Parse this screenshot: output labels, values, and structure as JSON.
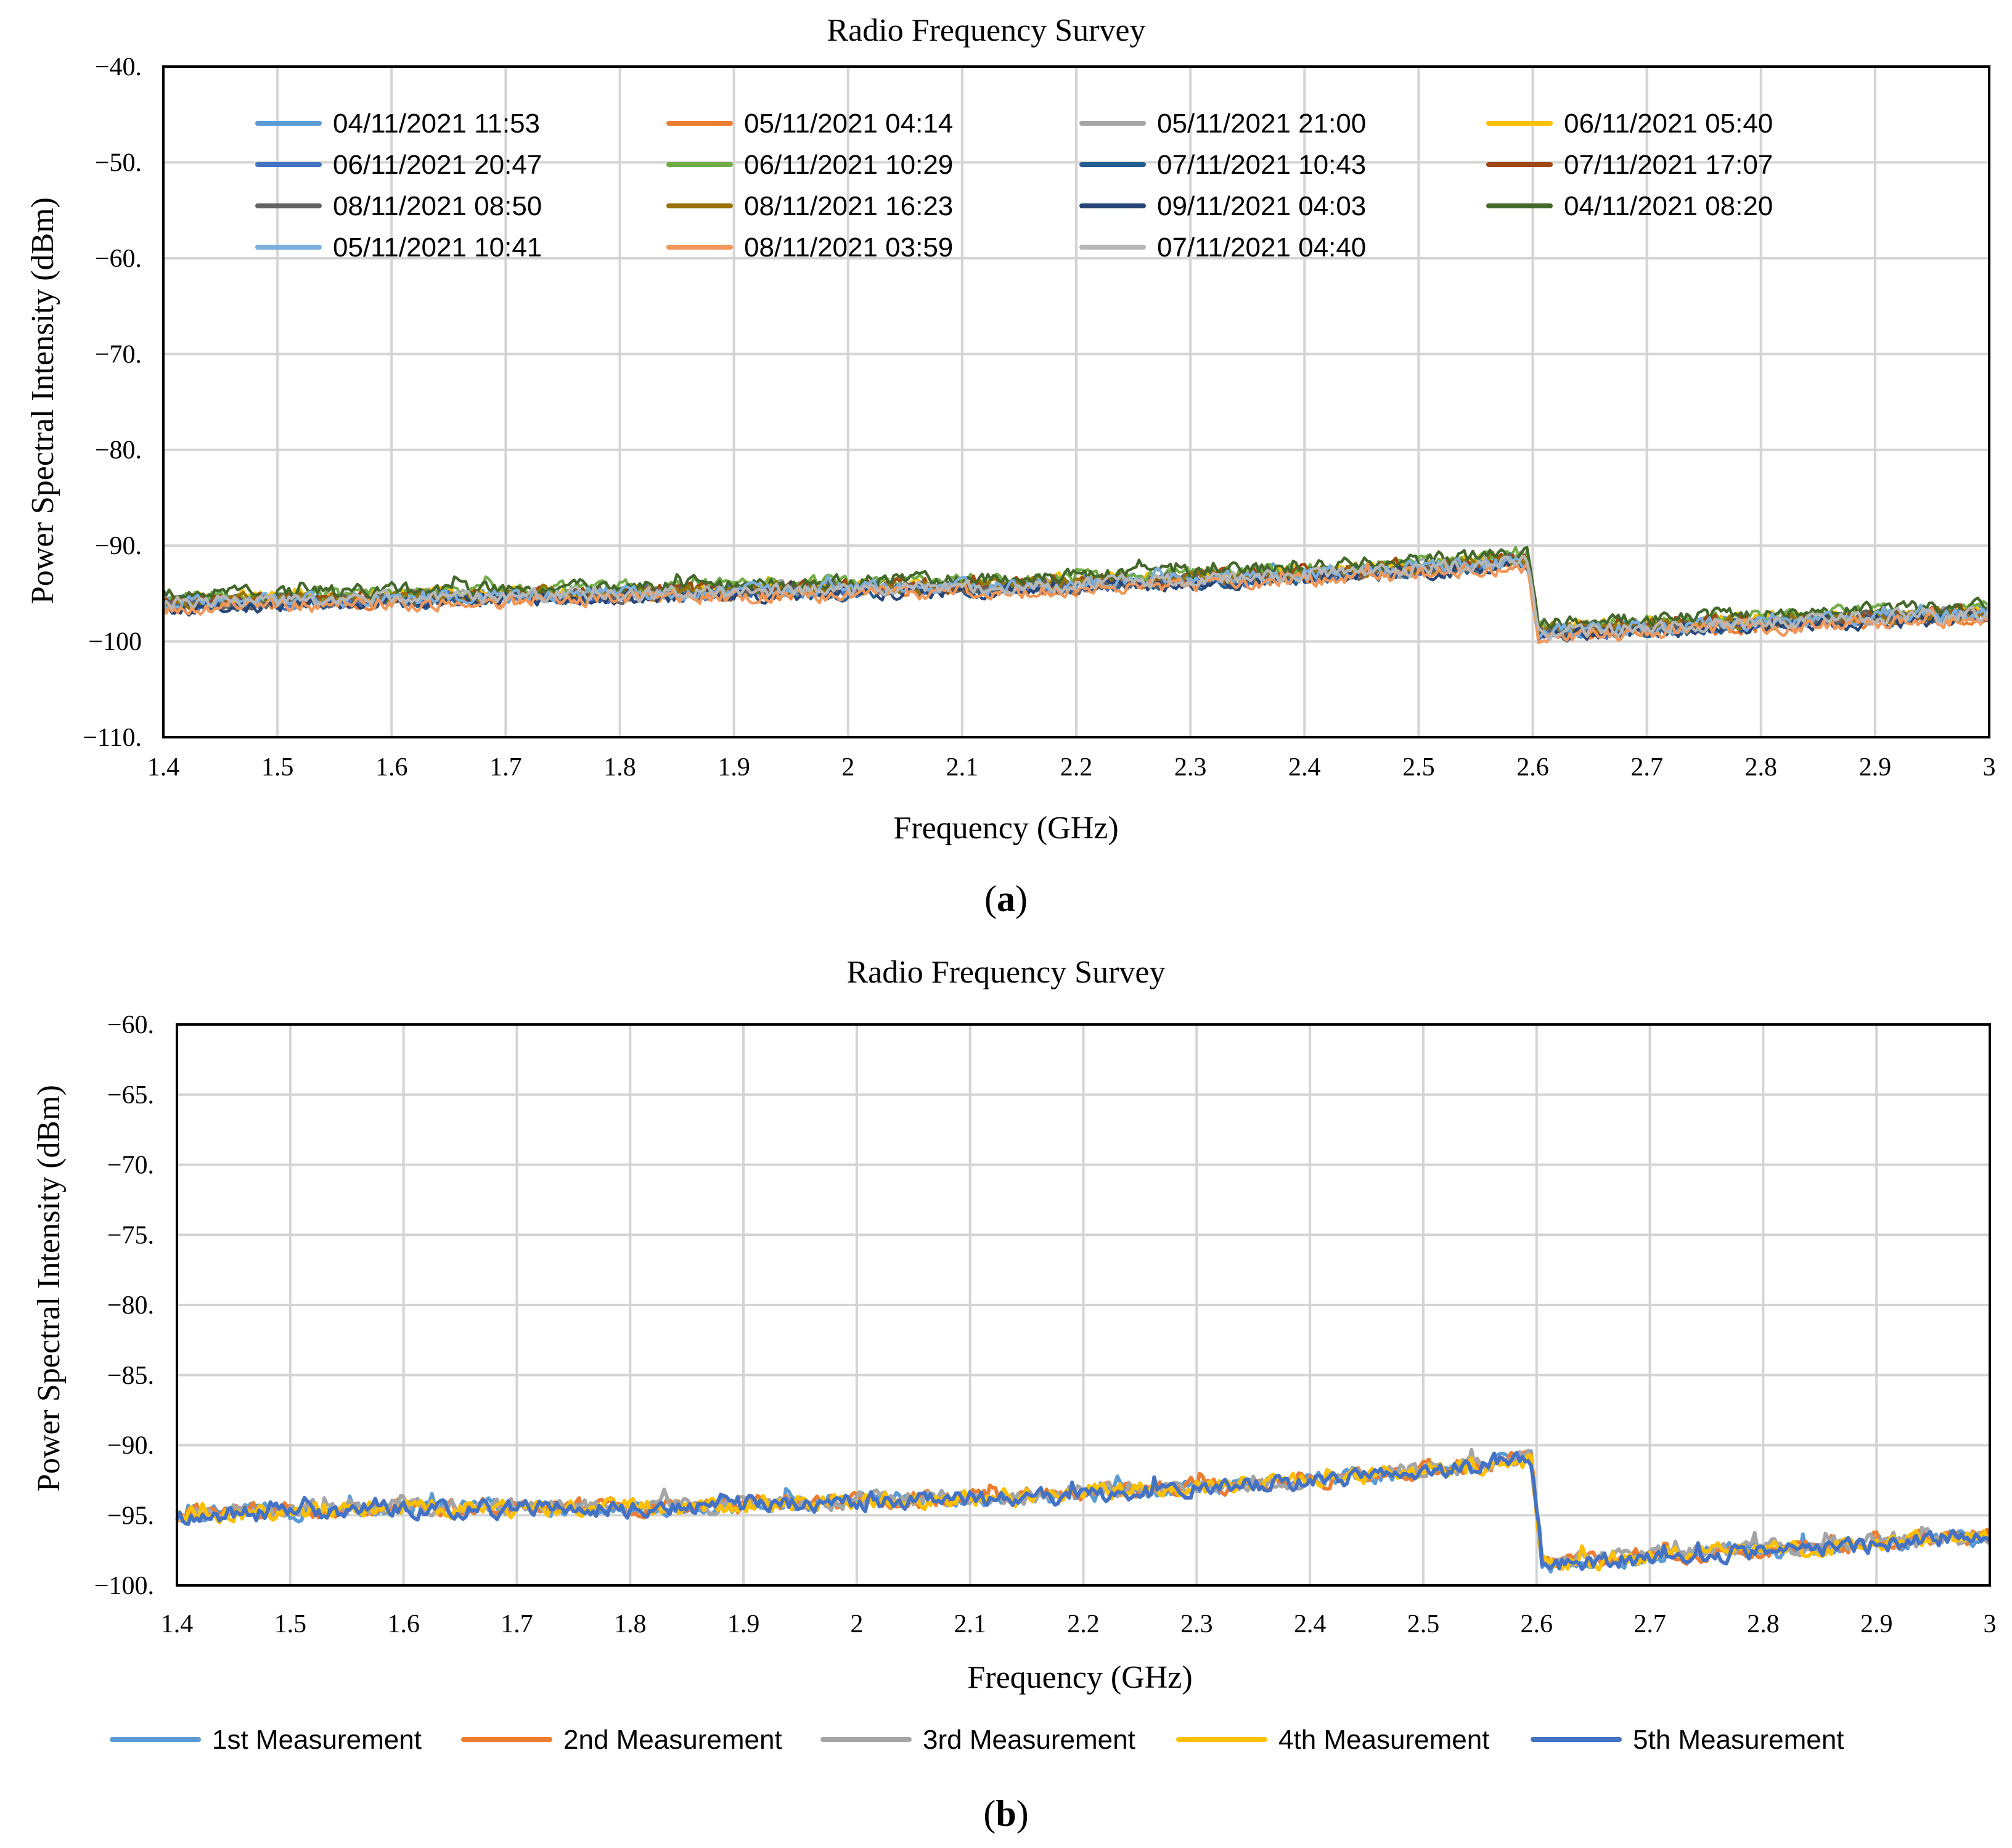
{
  "chart_data": [
    {
      "type": "line",
      "panel_label": "a",
      "title": "Radio Frequency Survey",
      "xlabel": "Frequency (GHz)",
      "ylabel": "Power Spectral Intensity  (dBm)",
      "xlim": [
        1.4,
        3.0
      ],
      "ylim": [
        -110,
        -40
      ],
      "xticks": [
        1.4,
        1.5,
        1.6,
        1.7,
        1.8,
        1.9,
        2.0,
        2.1,
        2.2,
        2.3,
        2.4,
        2.5,
        2.6,
        2.7,
        2.8,
        2.9,
        3.0
      ],
      "xtick_labels": [
        "1.4",
        "1.5",
        "1.6",
        "1.7",
        "1.8",
        "1.9",
        "2",
        "2.1",
        "2.2",
        "2.3",
        "2.4",
        "2.5",
        "2.6",
        "2.7",
        "2.8",
        "2.9",
        "3"
      ],
      "yticks": [
        -40,
        -50,
        -60,
        -70,
        -80,
        -90,
        -100,
        -110
      ],
      "ytick_labels": [
        "−40.",
        "−50.",
        "−60.",
        "−70.",
        "−80.",
        "−90.",
        "−100",
        "−110."
      ],
      "grid": true,
      "legend_position": "top, inside plot, 4 columns",
      "profile": {
        "description": "approximate envelope read from plot; noise ~±1 dB",
        "x": [
          1.4,
          1.6,
          1.8,
          2.0,
          2.2,
          2.4,
          2.55,
          2.595,
          2.605,
          2.7,
          2.8,
          2.9,
          3.0
        ],
        "y": [
          -96,
          -95.5,
          -95,
          -94.5,
          -94,
          -93,
          -92,
          -91.5,
          -99,
          -98.5,
          -98,
          -97.5,
          -97
        ]
      },
      "series": [
        {
          "name": "04/11/2021 11:53",
          "color": "#5b9bd5",
          "offset": 0.0
        },
        {
          "name": "05/11/2021 04:14",
          "color": "#ed7d31",
          "offset": -0.5
        },
        {
          "name": "05/11/2021 21:00",
          "color": "#a5a5a5",
          "offset": 0.2
        },
        {
          "name": "06/11/2021 05:40",
          "color": "#ffc000",
          "offset": 0.5
        },
        {
          "name": "06/11/2021 20:47",
          "color": "#4472c4",
          "offset": -0.3
        },
        {
          "name": "06/11/2021 10:29",
          "color": "#70ad47",
          "offset": 1.0
        },
        {
          "name": "07/11/2021 10:43",
          "color": "#255e91",
          "offset": -0.6
        },
        {
          "name": "07/11/2021 17:07",
          "color": "#9e480e",
          "offset": 0.3
        },
        {
          "name": "08/11/2021 08:50",
          "color": "#636363",
          "offset": -0.2
        },
        {
          "name": "08/11/2021 16:23",
          "color": "#997300",
          "offset": 0.1
        },
        {
          "name": "09/11/2021 04:03",
          "color": "#264478",
          "offset": -0.8
        },
        {
          "name": "04/11/2021 08:20",
          "color": "#43682b",
          "offset": 1.4
        },
        {
          "name": "05/11/2021 10:41",
          "color": "#7cafdd",
          "offset": 0.0
        },
        {
          "name": "08/11/2021 03:59",
          "color": "#f1975a",
          "offset": -1.0
        },
        {
          "name": "07/11/2021 04:40",
          "color": "#b7b7b7",
          "offset": -0.1
        }
      ]
    },
    {
      "type": "line",
      "panel_label": "b",
      "title": "Radio Frequency Survey",
      "xlabel": "Frequency (GHz)",
      "ylabel": "Power Spectral Intensity (dBm)",
      "xlim": [
        1.4,
        3.0
      ],
      "ylim": [
        -100,
        -60
      ],
      "xticks": [
        1.4,
        1.5,
        1.6,
        1.7,
        1.8,
        1.9,
        2.0,
        2.1,
        2.2,
        2.3,
        2.4,
        2.5,
        2.6,
        2.7,
        2.8,
        2.9,
        3.0
      ],
      "xtick_labels": [
        "1.4",
        "1.5",
        "1.6",
        "1.7",
        "1.8",
        "1.9",
        "2",
        "2.1",
        "2.2",
        "2.3",
        "2.4",
        "2.5",
        "2.6",
        "2.7",
        "2.8",
        "2.9",
        "3"
      ],
      "yticks": [
        -60,
        -65,
        -70,
        -75,
        -80,
        -85,
        -90,
        -95,
        -100
      ],
      "ytick_labels": [
        "−60.",
        "−65.",
        "−70.",
        "−75.",
        "−80.",
        "−85.",
        "−90.",
        "−95.",
        "−100."
      ],
      "grid": true,
      "legend_position": "bottom, single row",
      "profile": {
        "description": "approximate envelope read from plot; noise ~±1 dB",
        "x": [
          1.4,
          1.6,
          1.8,
          2.0,
          2.2,
          2.4,
          2.55,
          2.595,
          2.605,
          2.7,
          2.8,
          2.9,
          3.0
        ],
        "y": [
          -95,
          -94.5,
          -94.5,
          -94,
          -93.5,
          -92.5,
          -91.5,
          -91,
          -98.5,
          -98,
          -97.5,
          -97,
          -96.5
        ]
      },
      "series": [
        {
          "name": "1st Measurement",
          "color": "#5b9bd5",
          "offset": 0.0
        },
        {
          "name": "2nd Measurement",
          "color": "#ed7d31",
          "offset": 0.1
        },
        {
          "name": "3rd Measurement",
          "color": "#a5a5a5",
          "offset": 0.2
        },
        {
          "name": "4th Measurement",
          "color": "#ffc000",
          "offset": 0.0
        },
        {
          "name": "5th Measurement",
          "color": "#4472c4",
          "offset": -0.1
        }
      ]
    }
  ]
}
